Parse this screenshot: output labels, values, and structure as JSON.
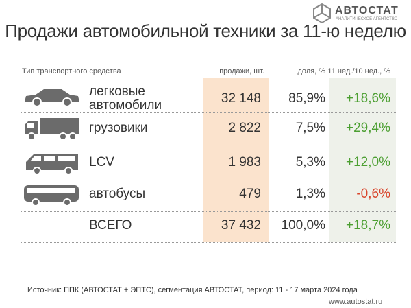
{
  "header": {
    "logo": "АВТОСТАТ",
    "logo_subtitle": "АНАЛИТИЧЕСКОЕ АГЕНТСТВО",
    "title": "Продажи автомобильной техники за 11-ю неделю"
  },
  "table": {
    "columns": [
      "Тип транспортного средства",
      "продажи, шт.",
      "доля, %",
      "11 нед./10 нед., %"
    ],
    "rows": [
      [
        "легковые автомобили",
        "32 148",
        "85,9%",
        "+18,6%"
      ],
      [
        "грузовики",
        "2 822",
        "7,5%",
        "+29,4%"
      ],
      [
        "LCV",
        "1 983",
        "5,3%",
        "+12,0%"
      ],
      [
        "автобусы",
        "479",
        "1,3%",
        "-0,6%"
      ],
      [
        "ВСЕГО",
        "37 432",
        "100,0%",
        "+18,7%"
      ]
    ]
  },
  "colors": {
    "positive": "#4c9f32",
    "negative": "#d9452b"
  },
  "footer": {
    "source": "Источник: ППК (АВТОСТАТ + ЭПТС), сегментация АВТОСТАТ, период: 11 - 17 марта 2024 года",
    "url": "www.autostat.ru"
  }
}
